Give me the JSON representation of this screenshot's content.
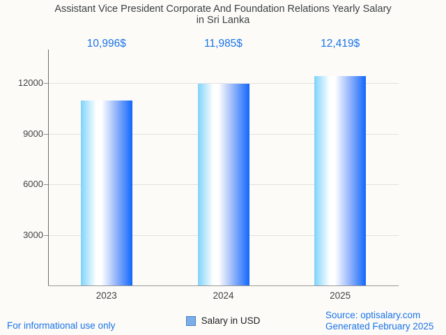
{
  "title": {
    "line1": "Assistant Vice President Corporate And Foundation Relations Yearly Salary",
    "line2": "in Sri Lanka"
  },
  "chart_data": {
    "type": "bar",
    "title": "Assistant Vice President Corporate And Foundation Relations Yearly Salary in Sri Lanka",
    "categories": [
      "2023",
      "2024",
      "2025"
    ],
    "values": [
      10996,
      11985,
      12419
    ],
    "bar_labels": [
      "10,996$",
      "11,985$",
      "12,419$"
    ],
    "series_name": "Salary in USD",
    "xlabel": "",
    "ylabel": "",
    "ylim": [
      0,
      14000
    ],
    "yticks": [
      3000,
      6000,
      9000,
      12000
    ],
    "grid": true,
    "legend_position": "bottom",
    "bar_gradient": {
      "left": "#7ed3fa",
      "mid": "#ffffff",
      "right": "#1267fb"
    }
  },
  "legend": {
    "label": "Salary in USD",
    "swatch_fill": "#79aee8",
    "swatch_border": "#4a80c4"
  },
  "footer": {
    "disclaimer": "For informational use only",
    "source": "Source: optisalary.com",
    "generated": "Generated February 2025"
  },
  "colors": {
    "background": "#fcfbf8",
    "title_text": "#3c4043",
    "accent_blue": "#1a73e8",
    "tick_text": "#424242",
    "gridline": "#e3e1dd"
  }
}
